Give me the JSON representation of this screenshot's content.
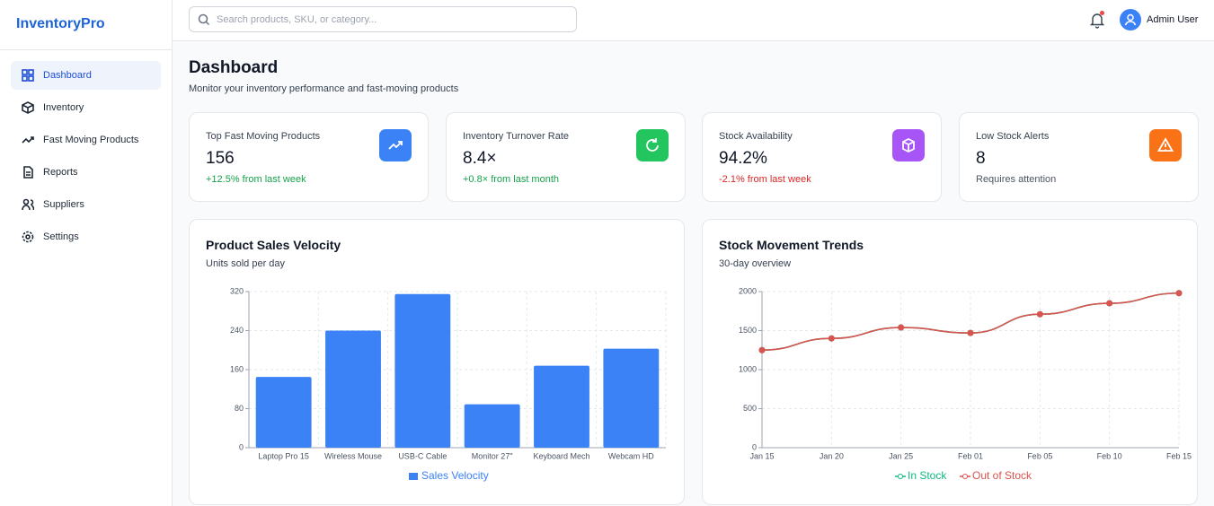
{
  "sidebar": {
    "brand": "InventoryPro",
    "nav": [
      "Dashboard",
      "Inventory",
      "Fast Moving Products",
      "Reports",
      "Suppliers",
      "Settings"
    ]
  },
  "topbar": {
    "search_placeholder": "Search products, SKU, or category...",
    "user": "Admin User"
  },
  "header": {
    "title": "Dashboard",
    "subtitle": "Monitor your inventory performance and fast-moving products"
  },
  "stats": [
    {
      "label": "Top Fast Moving Products",
      "value": "156",
      "note": "+12.5% from last week"
    },
    {
      "label": "Inventory Turnover Rate",
      "value": "8.4×",
      "note": "+0.8× from last month"
    },
    {
      "label": "Stock Availability",
      "value": "94.2%",
      "note": "-2.1% from last week"
    },
    {
      "label": "Low Stock Alerts",
      "value": "8",
      "note": "Requires attention"
    }
  ],
  "charts": [
    {
      "type": "bar",
      "title": "Product Sales Velocity",
      "subtitle": "Units sold per day",
      "categories": [
        "Laptop Pro 15",
        "Wireless Mouse",
        "USB-C Cable",
        "Monitor 27\"",
        "Keyboard Mech",
        "Webcam HD"
      ],
      "series": [
        {
          "name": "Sales Velocity",
          "color": "#3b82f6",
          "values": [
            145,
            240,
            315,
            89,
            168,
            203
          ]
        }
      ],
      "ylim": [
        0,
        320
      ],
      "yticks": [
        0,
        80,
        160,
        240,
        320
      ],
      "grid": true
    },
    {
      "type": "line",
      "title": "Stock Movement Trends",
      "subtitle": "30-day overview",
      "categories": [
        "Jan 15",
        "Jan 20",
        "Jan 25",
        "Feb 01",
        "Feb 05",
        "Feb 10",
        "Feb 15"
      ],
      "series": [
        {
          "name": "In Stock",
          "color": "#10b981",
          "values": [
            1250,
            1400,
            1540,
            1470,
            1710,
            1850,
            1980
          ]
        },
        {
          "name": "Out of Stock",
          "color": "#d9534f",
          "values": [
            1250,
            1400,
            1540,
            1470,
            1710,
            1850,
            1980
          ]
        }
      ],
      "ylim": [
        0,
        2000
      ],
      "yticks": [
        0,
        500,
        1000,
        1500,
        2000
      ],
      "grid": true
    }
  ]
}
